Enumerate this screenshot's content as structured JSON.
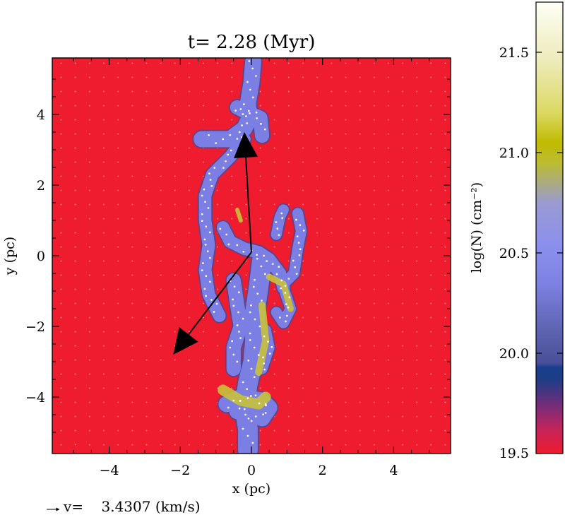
{
  "chart_data": {
    "type": "heatmap",
    "title": "t= 2.28 (Myr)",
    "xlabel": "x (pc)",
    "ylabel": "y (pc)",
    "xlim": [
      -5.6,
      5.6
    ],
    "ylim": [
      -5.6,
      5.6
    ],
    "xticks": [
      -4,
      -2,
      0,
      2,
      4
    ],
    "xtick_labels": [
      "−4",
      "−2",
      "0",
      "2",
      "4"
    ],
    "yticks": [
      -4,
      -2,
      0,
      2,
      4
    ],
    "ytick_labels": [
      "−4",
      "−2",
      "0",
      "2",
      "4"
    ],
    "background_color": "#ee1c2e",
    "filament_color": "#7b7fe4",
    "dense_color": "#c9c23a",
    "colorbar": {
      "label": "log(N) (cm⁻²)",
      "range": [
        19.5,
        21.75
      ],
      "ticks": [
        19.5,
        20.0,
        20.5,
        21.0,
        21.5
      ],
      "tick_labels": [
        "19.5",
        "20.0",
        "20.5",
        "21.0",
        "21.5"
      ],
      "stops": [
        {
          "v": 19.5,
          "c": "#ee1c2e"
        },
        {
          "v": 19.62,
          "c": "#c6245a"
        },
        {
          "v": 19.75,
          "c": "#6e2e7c"
        },
        {
          "v": 19.87,
          "c": "#1e3d86"
        },
        {
          "v": 19.93,
          "c": "#183f8c"
        },
        {
          "v": 19.95,
          "c": "#4a4f98"
        },
        {
          "v": 20.1,
          "c": "#5c62ae"
        },
        {
          "v": 20.35,
          "c": "#7d81e2"
        },
        {
          "v": 20.55,
          "c": "#8c90ec"
        },
        {
          "v": 20.75,
          "c": "#9a9ad0"
        },
        {
          "v": 20.95,
          "c": "#bcbc30"
        },
        {
          "v": 21.05,
          "c": "#c0bb00"
        },
        {
          "v": 21.2,
          "c": "#dcd862"
        },
        {
          "v": 21.45,
          "c": "#ecebb8"
        },
        {
          "v": 21.75,
          "c": "#fefef6"
        }
      ]
    },
    "arrows": [
      {
        "from": [
          0.0,
          0.1
        ],
        "to": [
          -0.2,
          3.5
        ]
      },
      {
        "from": [
          0.0,
          0.1
        ],
        "to": [
          -2.2,
          -2.8
        ]
      }
    ],
    "filaments": [
      {
        "w": 0.45,
        "pts": [
          [
            0.05,
            5.5
          ],
          [
            0.0,
            4.9
          ],
          [
            -0.1,
            4.3
          ],
          [
            -0.05,
            3.9
          ],
          [
            -0.2,
            3.6
          ],
          [
            -0.6,
            3.3
          ],
          [
            -1.4,
            3.3
          ]
        ]
      },
      {
        "w": 0.4,
        "pts": [
          [
            -0.4,
            4.2
          ],
          [
            -0.2,
            4.1
          ],
          [
            0.25,
            3.9
          ],
          [
            0.3,
            3.4
          ]
        ]
      },
      {
        "w": 0.35,
        "pts": [
          [
            -0.2,
            3.3
          ],
          [
            -0.6,
            2.8
          ],
          [
            -1.1,
            2.3
          ],
          [
            -1.3,
            1.7
          ],
          [
            -1.3,
            1.0
          ],
          [
            -1.2,
            0.3
          ],
          [
            -1.3,
            -0.4
          ],
          [
            -1.2,
            -1.1
          ],
          [
            -0.9,
            -1.7
          ]
        ]
      },
      {
        "w": 0.35,
        "pts": [
          [
            -0.8,
            0.8
          ],
          [
            -0.6,
            0.4
          ],
          [
            -0.2,
            0.2
          ],
          [
            0.2,
            0.1
          ],
          [
            0.5,
            -0.1
          ],
          [
            0.8,
            -0.5
          ],
          [
            0.9,
            -0.9
          ]
        ]
      },
      {
        "w": 0.3,
        "pts": [
          [
            0.9,
            -0.8
          ],
          [
            1.2,
            -0.5
          ],
          [
            1.3,
            0.2
          ],
          [
            1.4,
            0.7
          ],
          [
            1.3,
            1.2
          ]
        ]
      },
      {
        "w": 0.3,
        "pts": [
          [
            0.9,
            -0.9
          ],
          [
            1.1,
            -1.5
          ],
          [
            0.9,
            -1.9
          ],
          [
            0.7,
            -1.6
          ]
        ]
      },
      {
        "w": 0.3,
        "pts": [
          [
            0.7,
            0.6
          ],
          [
            0.8,
            1.1
          ],
          [
            0.9,
            1.3
          ]
        ]
      },
      {
        "w": 0.55,
        "pts": [
          [
            0.3,
            -0.1
          ],
          [
            0.2,
            -0.9
          ],
          [
            0.1,
            -1.6
          ],
          [
            0.1,
            -2.4
          ],
          [
            0.05,
            -3.0
          ],
          [
            -0.1,
            -3.6
          ],
          [
            -0.2,
            -4.3
          ],
          [
            -0.1,
            -4.9
          ],
          [
            -0.1,
            -5.5
          ]
        ]
      },
      {
        "w": 0.4,
        "pts": [
          [
            -0.5,
            -0.7
          ],
          [
            -0.4,
            -1.4
          ],
          [
            -0.3,
            -2.0
          ],
          [
            -0.5,
            -2.6
          ],
          [
            -0.5,
            -3.2
          ]
        ]
      },
      {
        "w": 0.45,
        "pts": [
          [
            -0.7,
            -4.2
          ],
          [
            -0.3,
            -4.0
          ],
          [
            0.3,
            -4.1
          ],
          [
            0.5,
            -4.3
          ],
          [
            0.3,
            -4.6
          ],
          [
            -0.4,
            -4.4
          ]
        ]
      },
      {
        "w": 0.3,
        "pts": [
          [
            0.3,
            -3.2
          ],
          [
            0.5,
            -2.6
          ],
          [
            0.4,
            -2.1
          ]
        ]
      }
    ],
    "dense_regions": [
      {
        "w": 0.3,
        "pts": [
          [
            -0.8,
            -3.8
          ],
          [
            -0.3,
            -4.1
          ],
          [
            0.2,
            -4.2
          ],
          [
            0.4,
            -4.0
          ]
        ]
      },
      {
        "w": 0.2,
        "pts": [
          [
            0.3,
            -1.4
          ],
          [
            0.4,
            -2.4
          ],
          [
            0.2,
            -3.3
          ]
        ]
      },
      {
        "w": 0.18,
        "pts": [
          [
            0.5,
            -0.6
          ],
          [
            0.9,
            -0.8
          ],
          [
            1.1,
            -1.5
          ]
        ]
      },
      {
        "w": 0.12,
        "pts": [
          [
            -0.3,
            1.0
          ],
          [
            -0.4,
            1.3
          ]
        ]
      }
    ],
    "velocity_scale": {
      "text": "v=    3.4307 (km/s)"
    }
  }
}
